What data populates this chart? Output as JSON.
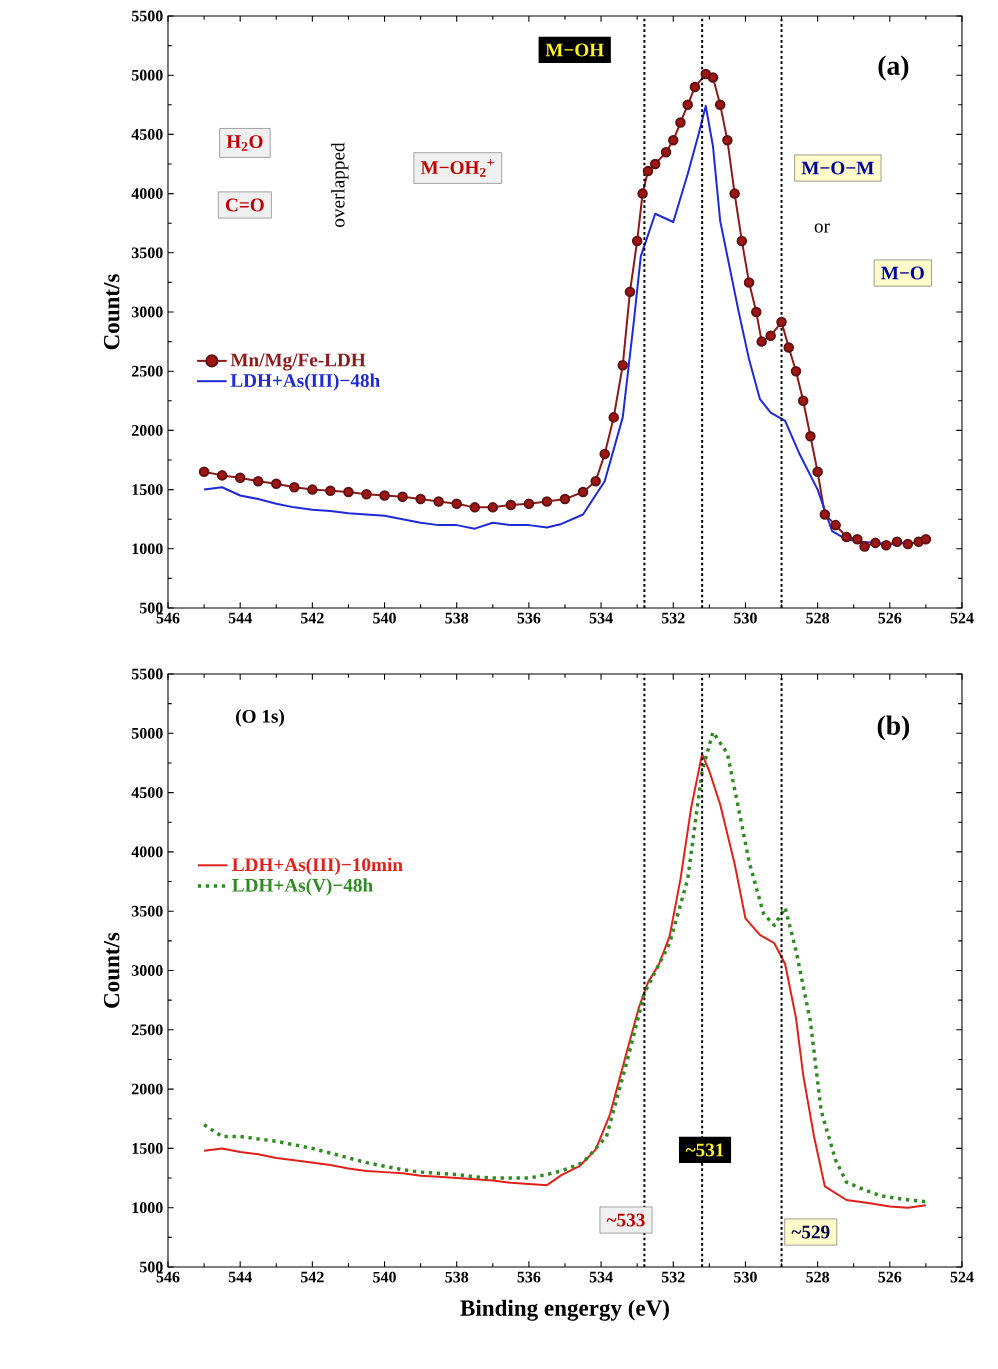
{
  "chart_data": [
    {
      "type": "line",
      "ylabel": "Count/s",
      "xlim": [
        546,
        524
      ],
      "ylim": [
        500,
        5500
      ],
      "xticks": [
        546,
        544,
        542,
        540,
        538,
        536,
        534,
        532,
        530,
        528,
        526,
        524
      ],
      "yticks": [
        500,
        1000,
        1500,
        2000,
        2500,
        3000,
        3500,
        4000,
        4500,
        5000,
        5500
      ],
      "legend": "left",
      "grid": false,
      "series": [
        {
          "name": "Mn/Mg/Fe-LDH",
          "color": "#8b1a1a",
          "marker": "circle",
          "line_style": "solid",
          "x": [
            545,
            544.5,
            544,
            543.5,
            543,
            542.5,
            542,
            541.5,
            541,
            540.5,
            540,
            539.5,
            539,
            538.5,
            538,
            537.5,
            537,
            536.5,
            536,
            535.5,
            535,
            534.5,
            534.15,
            533.9,
            533.65,
            533.4,
            533.2,
            533.0,
            532.85,
            532.7,
            532.5,
            532.2,
            532.0,
            531.8,
            531.6,
            531.4,
            531.1,
            530.9,
            530.7,
            530.5,
            530.3,
            530.1,
            529.9,
            529.7,
            529.55,
            529.3,
            529.0,
            528.8,
            528.6,
            528.4,
            528.2,
            528.0,
            527.8,
            527.5,
            527.2,
            526.9,
            526.7,
            526.4,
            526.1,
            525.8,
            525.5,
            525.2,
            525
          ],
          "values": [
            1650,
            1620,
            1600,
            1570,
            1550,
            1520,
            1500,
            1490,
            1480,
            1460,
            1450,
            1440,
            1420,
            1400,
            1380,
            1350,
            1350,
            1370,
            1380,
            1400,
            1420,
            1480,
            1570,
            1800,
            2110,
            2550,
            3170,
            3600,
            4000,
            4190,
            4250,
            4350,
            4450,
            4600,
            4750,
            4900,
            5010,
            4980,
            4750,
            4450,
            4000,
            3600,
            3250,
            3000,
            2750,
            2800,
            2915,
            2700,
            2500,
            2250,
            1950,
            1650,
            1290,
            1200,
            1100,
            1080,
            1020,
            1050,
            1030,
            1060,
            1040,
            1060,
            1080
          ]
        },
        {
          "name": "LDH+As(III)−48h",
          "color": "#1f2ad6",
          "marker": "none",
          "line_style": "solid",
          "x": [
            545,
            544.5,
            544,
            543.5,
            543,
            542.5,
            542,
            541.5,
            541,
            540.5,
            540,
            539.5,
            539,
            538.5,
            538,
            537.5,
            537,
            536.5,
            536,
            535.5,
            535.1,
            534.5,
            533.9,
            533.4,
            533.1,
            532.9,
            532.5,
            532.0,
            531.6,
            531.3,
            531.1,
            530.9,
            530.7,
            530.2,
            529.9,
            529.6,
            529.3,
            528.9,
            528.5,
            528.0,
            527.6,
            527.2,
            526.8,
            526.4,
            526,
            525.5,
            525
          ],
          "values": [
            1500,
            1520,
            1450,
            1420,
            1380,
            1350,
            1330,
            1320,
            1300,
            1290,
            1280,
            1250,
            1220,
            1200,
            1200,
            1170,
            1220,
            1200,
            1200,
            1180,
            1210,
            1290,
            1570,
            2110,
            2900,
            3470,
            3830,
            3760,
            4165,
            4500,
            4740,
            4400,
            3770,
            3020,
            2600,
            2265,
            2150,
            2080,
            1800,
            1500,
            1150,
            1080,
            1060,
            1050,
            1040,
            1050,
            1050
          ]
        }
      ],
      "ref_lines": [
        {
          "axis": "x",
          "value": 532.8,
          "color": "#000000",
          "line_style": "dotted"
        },
        {
          "axis": "x",
          "value": 531.2,
          "color": "#000000",
          "line_style": "dotted"
        },
        {
          "axis": "x",
          "value": 529.0,
          "color": "#000000",
          "line_style": "dotted"
        }
      ],
      "annotations": [
        "M−OH",
        "(a)",
        "H$_{2}$O",
        "C=O",
        "overlapped",
        "M−OH$_{2}$$^{+}$",
        "M−O−M",
        "or",
        "M−O"
      ]
    },
    {
      "type": "line",
      "xlabel": "Binding engergy (eV)",
      "ylabel": "Count/s",
      "xlim": [
        546,
        524
      ],
      "ylim": [
        500,
        5500
      ],
      "xticks": [
        546,
        544,
        542,
        540,
        538,
        536,
        534,
        532,
        530,
        528,
        526,
        524
      ],
      "yticks": [
        500,
        1000,
        1500,
        2000,
        2500,
        3000,
        3500,
        4000,
        4500,
        5000,
        5500
      ],
      "legend": "left",
      "grid": false,
      "series": [
        {
          "name": "LDH+As(III)−10min",
          "color": "#e0201b",
          "marker": "none",
          "line_style": "solid",
          "x": [
            545,
            544.5,
            544,
            543.5,
            543,
            542.5,
            542,
            541.5,
            541,
            540.5,
            540,
            539.5,
            539,
            538.5,
            538,
            537.5,
            537,
            536.5,
            536,
            535.5,
            535.1,
            534.6,
            534.15,
            533.75,
            533.3,
            532.95,
            532.7,
            532.4,
            532.1,
            531.8,
            531.5,
            531.2,
            531.0,
            530.7,
            530.3,
            530.0,
            529.6,
            529.2,
            528.9,
            528.6,
            528.4,
            528.1,
            527.8,
            527.2,
            526.6,
            526,
            525.5,
            525
          ],
          "values": [
            1480,
            1500,
            1470,
            1450,
            1420,
            1400,
            1380,
            1360,
            1330,
            1310,
            1300,
            1290,
            1270,
            1260,
            1250,
            1240,
            1230,
            1210,
            1200,
            1190,
            1275,
            1350,
            1490,
            1790,
            2300,
            2690,
            2900,
            3050,
            3290,
            3770,
            4380,
            4825,
            4680,
            4400,
            3900,
            3440,
            3300,
            3230,
            3055,
            2600,
            2120,
            1600,
            1180,
            1065,
            1040,
            1010,
            1000,
            1020
          ]
        },
        {
          "name": "LDH+As(V)−48h",
          "color": "#2e8b22",
          "marker": "none",
          "line_style": "dotted",
          "x": [
            545,
            544.5,
            544,
            543.5,
            543,
            542.5,
            542,
            541.5,
            541,
            540.5,
            540,
            539.5,
            539,
            538.5,
            538,
            537.5,
            537,
            536.5,
            536,
            535.5,
            535.1,
            534.5,
            533.85,
            533.25,
            532.8,
            532.1,
            531.6,
            531.2,
            530.9,
            530.5,
            530.2,
            529.9,
            529.5,
            529.2,
            528.9,
            528.6,
            528.2,
            527.9,
            527.5,
            527.2,
            526.7,
            526.25,
            525.6,
            525
          ],
          "values": [
            1700,
            1600,
            1600,
            1580,
            1560,
            1530,
            1500,
            1460,
            1420,
            1380,
            1350,
            1320,
            1300,
            1290,
            1280,
            1260,
            1250,
            1250,
            1250,
            1280,
            1310,
            1380,
            1600,
            2270,
            2810,
            3230,
            3770,
            4680,
            5010,
            4830,
            4380,
            3920,
            3480,
            3380,
            3530,
            3170,
            2570,
            1815,
            1400,
            1215,
            1150,
            1100,
            1070,
            1050
          ]
        }
      ],
      "ref_lines": [
        {
          "axis": "x",
          "value": 532.8,
          "color": "#000000",
          "line_style": "dotted"
        },
        {
          "axis": "x",
          "value": 531.2,
          "color": "#000000",
          "line_style": "dotted"
        },
        {
          "axis": "x",
          "value": 529.0,
          "color": "#000000",
          "line_style": "dotted"
        }
      ],
      "annotations": [
        "(O 1s)",
        "(b)",
        "~531",
        "~533",
        "~529"
      ]
    }
  ]
}
